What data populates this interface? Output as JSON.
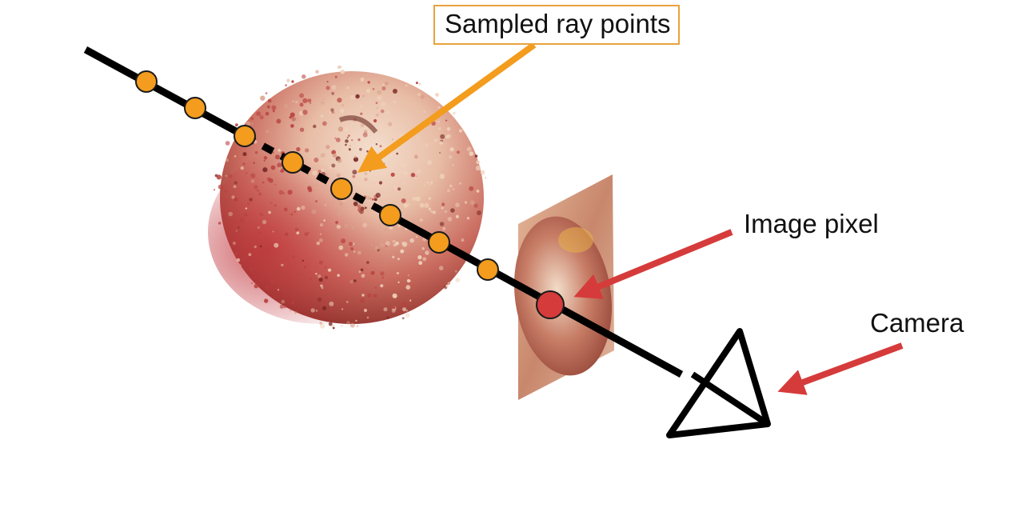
{
  "labels": {
    "sampled_ray_points": "Sampled ray points",
    "image_pixel": "Image pixel",
    "camera": "Camera"
  },
  "colors": {
    "ray": "#000000",
    "sample_point": "#f39c1e",
    "sample_point_outline": "#1a1a1a",
    "sampled_arrow": "#f39c1e",
    "label_box_border": "#e8a23c",
    "pixel_marker": "#d63b3b",
    "pixel_arrow": "#d63b3b",
    "camera_arrow": "#d63b3b",
    "camera_outline": "#000000",
    "apple_light": "#f0d2bc",
    "apple_mid": "#d9a08a",
    "apple_red": "#b8413f",
    "apple_dark": "#7a2a26",
    "image_plane": "#d9a488"
  },
  "elements": {
    "sample_point_count": 8
  }
}
